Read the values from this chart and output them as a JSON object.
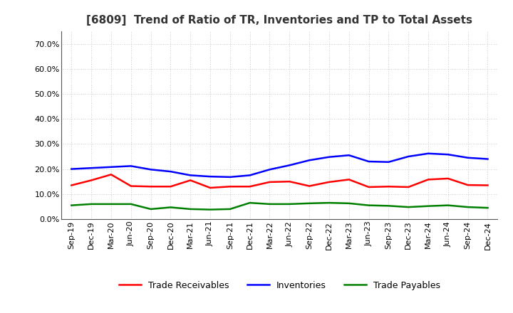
{
  "title": "[6809]  Trend of Ratio of TR, Inventories and TP to Total Assets",
  "x_labels": [
    "Sep-19",
    "Dec-19",
    "Mar-20",
    "Jun-20",
    "Sep-20",
    "Dec-20",
    "Mar-21",
    "Jun-21",
    "Sep-21",
    "Dec-21",
    "Mar-22",
    "Jun-22",
    "Sep-22",
    "Dec-22",
    "Mar-23",
    "Jun-23",
    "Sep-23",
    "Dec-23",
    "Mar-24",
    "Jun-24",
    "Sep-24",
    "Dec-24"
  ],
  "trade_receivables": [
    0.135,
    0.155,
    0.178,
    0.132,
    0.13,
    0.13,
    0.155,
    0.125,
    0.13,
    0.13,
    0.148,
    0.15,
    0.132,
    0.148,
    0.158,
    0.128,
    0.13,
    0.128,
    0.158,
    0.162,
    0.136,
    0.135
  ],
  "inventories": [
    0.2,
    0.204,
    0.208,
    0.212,
    0.198,
    0.19,
    0.175,
    0.17,
    0.168,
    0.175,
    0.198,
    0.215,
    0.235,
    0.248,
    0.255,
    0.23,
    0.228,
    0.25,
    0.262,
    0.258,
    0.245,
    0.24
  ],
  "trade_payables": [
    0.055,
    0.06,
    0.06,
    0.06,
    0.04,
    0.047,
    0.04,
    0.038,
    0.04,
    0.065,
    0.06,
    0.06,
    0.063,
    0.065,
    0.063,
    0.055,
    0.053,
    0.048,
    0.052,
    0.055,
    0.048,
    0.045
  ],
  "tr_color": "#ff0000",
  "inv_color": "#0000ff",
  "tp_color": "#008000",
  "ylim": [
    0.0,
    0.75
  ],
  "yticks": [
    0.0,
    0.1,
    0.2,
    0.3,
    0.4,
    0.5,
    0.6,
    0.7
  ],
  "background_color": "#ffffff",
  "grid_color": "#aaaaaa",
  "line_width": 1.8,
  "title_fontsize": 11,
  "tick_fontsize": 8,
  "legend_fontsize": 9
}
